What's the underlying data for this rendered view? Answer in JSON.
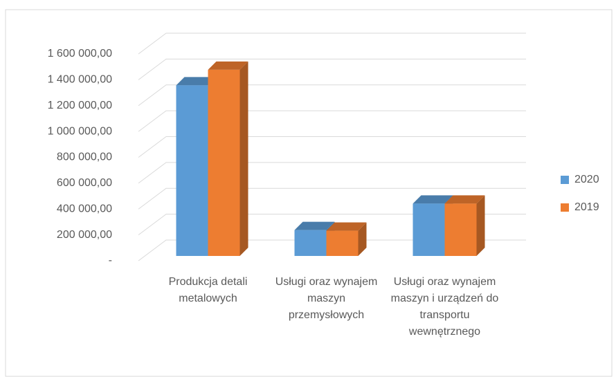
{
  "chart_data": {
    "type": "bar3d",
    "categories": [
      "Produkcja detali metalowych",
      "Usługi oraz wynajem maszyn przemysłowych",
      "Usługi oraz wynajem maszyn i urządzeń do transportu wewnętrznego"
    ],
    "series": [
      {
        "name": "2020",
        "color": "#5b9bd5",
        "values": [
          1320000,
          200000,
          405000
        ]
      },
      {
        "name": "2019",
        "color": "#ed7d31",
        "values": [
          1440000,
          195000,
          405000
        ]
      }
    ],
    "ylim": [
      0,
      1600000
    ],
    "yticks": [
      {
        "value": 0,
        "label": "-"
      },
      {
        "value": 200000,
        "label": "200 000,00"
      },
      {
        "value": 400000,
        "label": "400 000,00"
      },
      {
        "value": 600000,
        "label": "600 000,00"
      },
      {
        "value": 800000,
        "label": "800 000,00"
      },
      {
        "value": 1000000,
        "label": "1 000 000,00"
      },
      {
        "value": 1200000,
        "label": "1 200 000,00"
      },
      {
        "value": 1400000,
        "label": "1 400 000,00"
      },
      {
        "value": 1600000,
        "label": "1 600 000,00"
      }
    ],
    "grid": true,
    "legend": "right"
  }
}
